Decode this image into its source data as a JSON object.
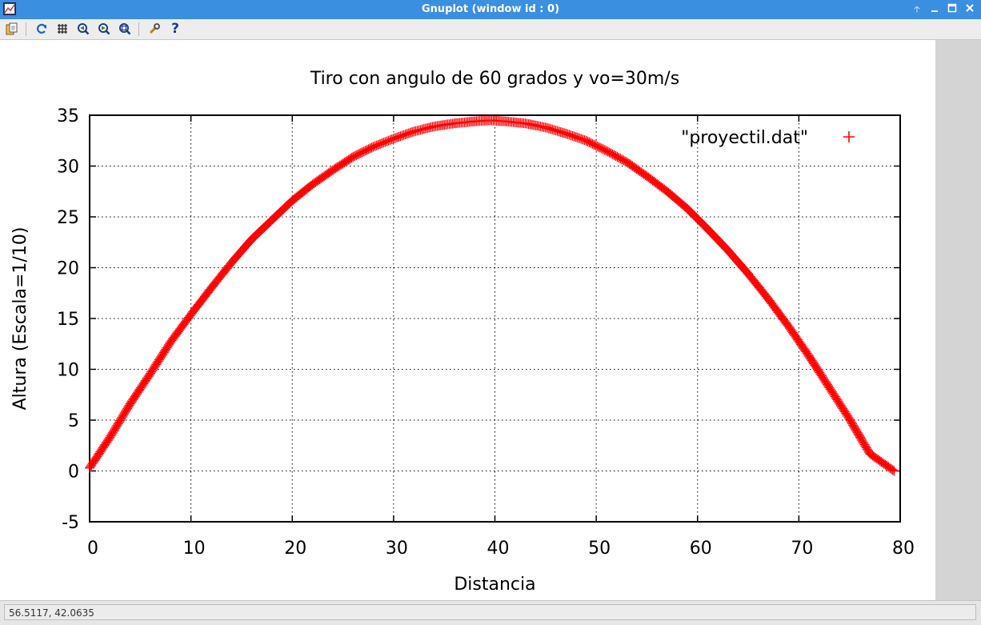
{
  "window": {
    "title": "Gnuplot (window id : 0)"
  },
  "toolbar": {
    "buttons": [
      "copy-to-clipboard",
      "replot",
      "toggle-grid",
      "zoom-previous",
      "zoom-next",
      "autoscale",
      "options",
      "help"
    ]
  },
  "status": {
    "mouse_coords": "56.5117,  42.0635"
  },
  "colors": {
    "series": "#ff0000",
    "titlebar": "#3a8fe0"
  },
  "chart_data": {
    "type": "scatter",
    "title": "Tiro con angulo de 60 grados y vo=30m/s",
    "xlabel": "Distancia",
    "ylabel": "Altura (Escala=1/10)",
    "xlim": [
      0,
      80
    ],
    "ylim": [
      -5,
      35
    ],
    "xticks": [
      0,
      10,
      20,
      30,
      40,
      50,
      60,
      70,
      80
    ],
    "yticks": [
      -5,
      0,
      5,
      10,
      15,
      20,
      25,
      30,
      35
    ],
    "grid": true,
    "legend": "top-right",
    "series": [
      {
        "name": "\"proyectil.dat\"",
        "marker": "+",
        "color": "#ff0000",
        "x": [
          0,
          2,
          4,
          6,
          8,
          10,
          12,
          14,
          16,
          18,
          20,
          22,
          24,
          26,
          28,
          30,
          32,
          34,
          36,
          38,
          39.5,
          41,
          43,
          45,
          47,
          49,
          51,
          53,
          55,
          57,
          59,
          61,
          63,
          65,
          67,
          69,
          71,
          73,
          75,
          77,
          79.4
        ],
        "y": [
          0.3,
          3.3,
          6.6,
          9.6,
          12.7,
          15.4,
          18,
          20.5,
          22.8,
          24.7,
          26.6,
          28.2,
          29.6,
          30.9,
          31.9,
          32.7,
          33.4,
          33.9,
          34.2,
          34.4,
          34.5,
          34.4,
          34.2,
          33.8,
          33.2,
          32.5,
          31.5,
          30.4,
          29,
          27.5,
          25.8,
          23.8,
          21.7,
          19.4,
          16.9,
          14.2,
          11.3,
          8.2,
          5.1,
          1.7,
          0
        ]
      }
    ]
  }
}
